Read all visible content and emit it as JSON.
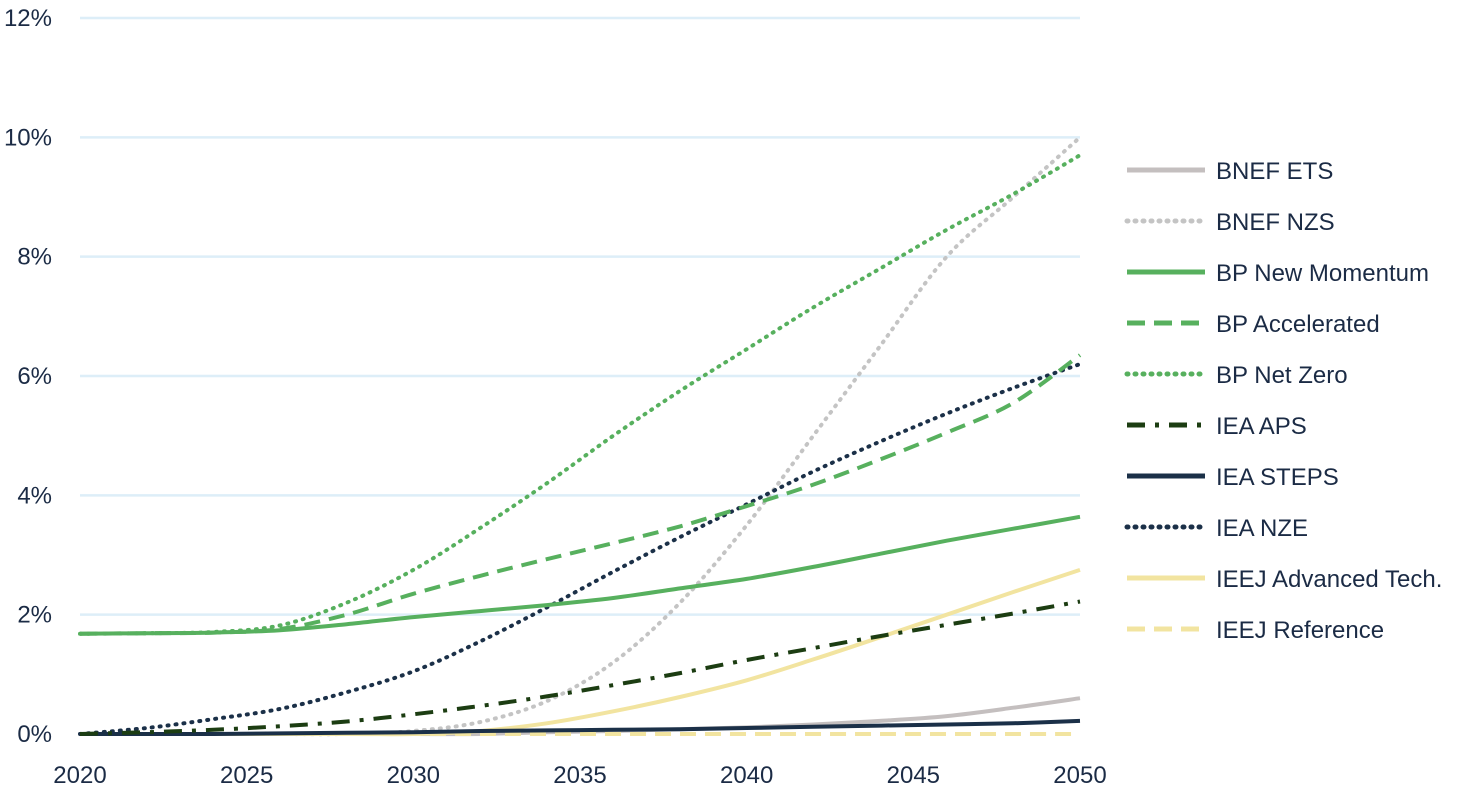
{
  "chart_data": {
    "type": "line",
    "title": "",
    "xlabel": "",
    "ylabel": "",
    "xlim": [
      2020,
      2050
    ],
    "ylim": [
      0,
      12
    ],
    "x_ticks": [
      "2020",
      "2025",
      "2030",
      "2035",
      "2040",
      "2045",
      "2050"
    ],
    "y_ticks": [
      "0%",
      "2%",
      "4%",
      "6%",
      "8%",
      "10%",
      "12%"
    ],
    "grid": "horizontal",
    "legend_position": "right",
    "x": [
      2020,
      2022,
      2024,
      2026,
      2028,
      2030,
      2032,
      2034,
      2036,
      2038,
      2040,
      2042,
      2044,
      2046,
      2048,
      2050
    ],
    "series": [
      {
        "name": "BNEF ETS",
        "color": "#c4bfbf",
        "dash": "solid",
        "values": [
          0,
          0,
          0,
          0,
          0,
          0,
          0,
          0.03,
          0.05,
          0.08,
          0.11,
          0.16,
          0.22,
          0.3,
          0.44,
          0.6
        ]
      },
      {
        "name": "BNEF NZS",
        "color": "#c4c4c4",
        "dash": "dotted",
        "values": [
          0,
          0,
          0,
          0,
          0,
          0.05,
          0.2,
          0.55,
          1.2,
          2.2,
          3.5,
          5.0,
          6.5,
          8.0,
          9.0,
          10.0
        ]
      },
      {
        "name": "BP New Momentum",
        "color": "#57b05e",
        "dash": "solid",
        "values": [
          1.68,
          1.69,
          1.7,
          1.74,
          1.84,
          1.96,
          2.06,
          2.16,
          2.28,
          2.44,
          2.6,
          2.8,
          3.02,
          3.24,
          3.44,
          3.64
        ]
      },
      {
        "name": "BP Accelerated",
        "color": "#57b05e",
        "dash": "dashed",
        "values": [
          1.68,
          1.69,
          1.7,
          1.76,
          2.0,
          2.35,
          2.65,
          2.93,
          3.2,
          3.48,
          3.82,
          4.18,
          4.6,
          5.05,
          5.55,
          6.35
        ]
      },
      {
        "name": "BP Net Zero",
        "color": "#57b05e",
        "dash": "dotted",
        "values": [
          1.68,
          1.69,
          1.71,
          1.82,
          2.2,
          2.75,
          3.45,
          4.2,
          5.0,
          5.75,
          6.45,
          7.15,
          7.8,
          8.45,
          9.05,
          9.7
        ]
      },
      {
        "name": "IEA APS",
        "color": "#1c3d12",
        "dash": "dashdot",
        "values": [
          0,
          0.03,
          0.07,
          0.13,
          0.21,
          0.33,
          0.47,
          0.63,
          0.82,
          1.02,
          1.24,
          1.44,
          1.64,
          1.83,
          2.02,
          2.22
        ]
      },
      {
        "name": "IEA STEPS",
        "color": "#1b3048",
        "dash": "solid",
        "values": [
          0,
          0,
          0,
          0.01,
          0.02,
          0.03,
          0.05,
          0.06,
          0.07,
          0.08,
          0.1,
          0.12,
          0.14,
          0.16,
          0.18,
          0.22
        ]
      },
      {
        "name": "IEA NZE",
        "color": "#1b3048",
        "dash": "dotted",
        "values": [
          0,
          0.1,
          0.25,
          0.42,
          0.7,
          1.05,
          1.55,
          2.12,
          2.72,
          3.3,
          3.85,
          4.4,
          4.9,
          5.37,
          5.8,
          6.2
        ]
      },
      {
        "name": "IEEJ Advanced Tech.",
        "color": "#f2e4a0",
        "dash": "solid",
        "values": [
          0,
          0,
          0,
          0,
          0,
          0,
          0.05,
          0.18,
          0.38,
          0.62,
          0.9,
          1.25,
          1.62,
          2.0,
          2.38,
          2.75
        ]
      },
      {
        "name": "IEEJ Reference",
        "color": "#f2e4a0",
        "dash": "dashed",
        "values": [
          0,
          0,
          0,
          0,
          0,
          0,
          0,
          0,
          0,
          0,
          0,
          0,
          0,
          0,
          0,
          0
        ]
      }
    ]
  }
}
